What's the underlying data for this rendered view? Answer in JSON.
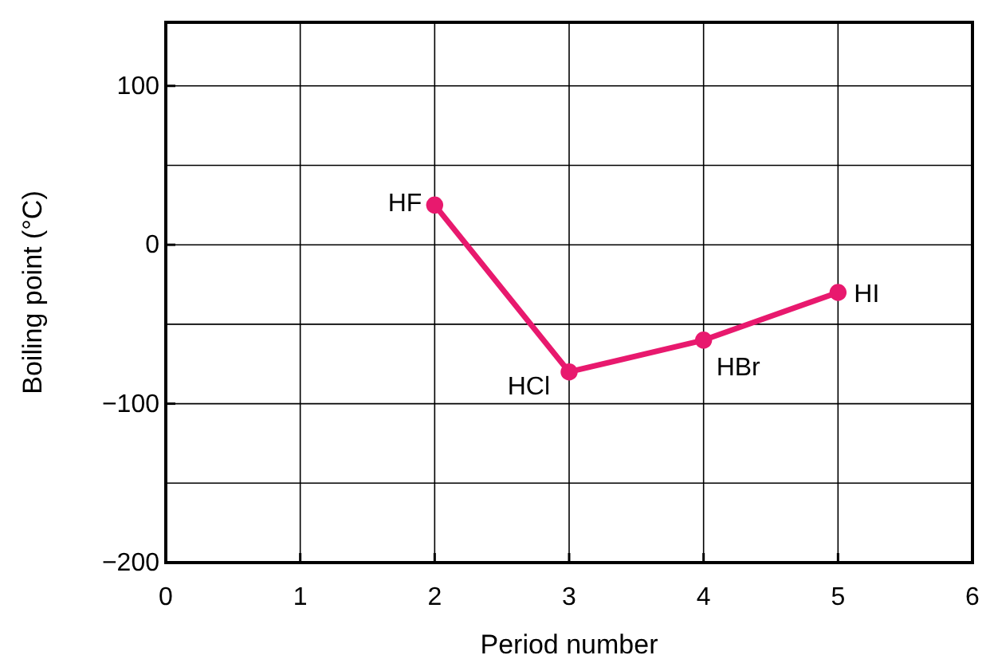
{
  "chart_data": {
    "type": "line",
    "xlabel": "Period number",
    "ylabel": "Boiling point (°C)",
    "x": [
      2,
      3,
      4,
      5
    ],
    "series": [
      {
        "color": "#e8196e",
        "values": [
          25,
          -80,
          -60,
          -30
        ]
      }
    ],
    "xlim": [
      0,
      6
    ],
    "xticks": [
      0,
      1,
      2,
      3,
      4,
      5,
      6
    ],
    "ylim": [
      -200,
      140
    ],
    "yticks": [
      -200,
      {
        "value": -150,
        "label": null
      },
      -100,
      {
        "value": -50,
        "label": null
      },
      0,
      {
        "value": 50,
        "label": null
      },
      100
    ],
    "grid": true,
    "marker": "circle",
    "line_style": "solid",
    "annotations": [
      {
        "text": "HF",
        "x": 2,
        "y": 25
      },
      {
        "text": "HCl",
        "x": 3,
        "y": -80
      },
      {
        "text": "HBr",
        "x": 4,
        "y": -60
      },
      {
        "text": "HI",
        "x": 5,
        "y": -30
      }
    ]
  }
}
